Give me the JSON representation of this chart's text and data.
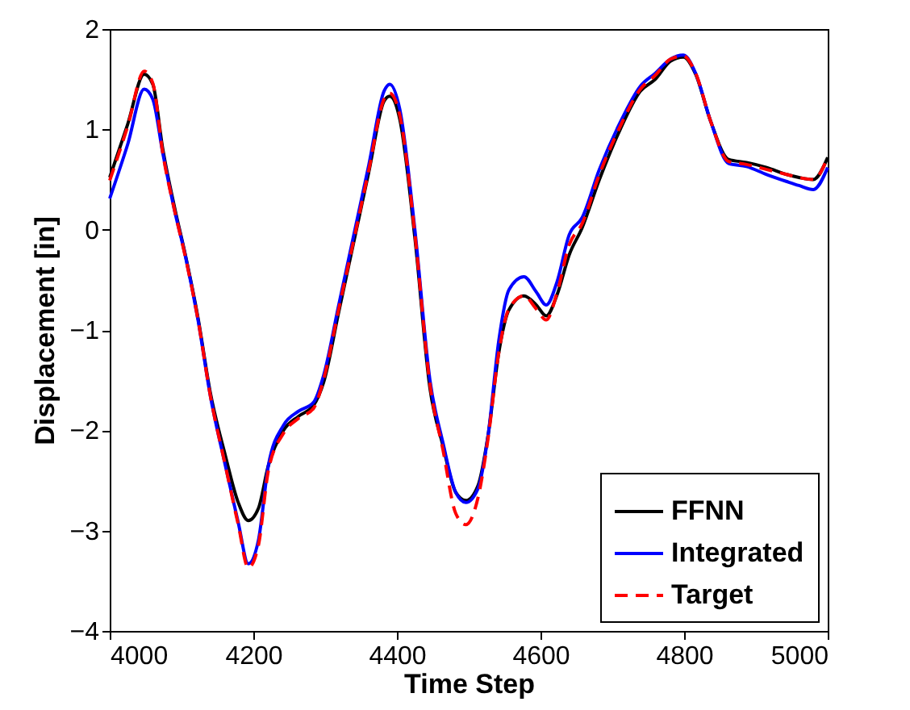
{
  "chart_data": {
    "type": "line",
    "xlabel": "Time Step",
    "ylabel": "Displacement [in]",
    "x": [
      4000,
      4025,
      4048,
      4060,
      4074,
      4091,
      4105,
      4123,
      4140,
      4161,
      4179,
      4193,
      4207,
      4221,
      4242,
      4263,
      4284,
      4298,
      4319,
      4340,
      4361,
      4382,
      4390,
      4404,
      4425,
      4446,
      4464,
      4482,
      4496,
      4513,
      4527,
      4542,
      4556,
      4577,
      4594,
      4608,
      4623,
      4640,
      4658,
      4682,
      4711,
      4739,
      4760,
      4781,
      4799,
      4816,
      4837,
      4862,
      4887,
      4915,
      4943,
      4960,
      4980,
      5000
    ],
    "series": [
      {
        "name": "FFNN",
        "color": "#000000",
        "line_style": "solid",
        "values": [
          0.52,
          1.05,
          1.55,
          1.45,
          0.8,
          0.2,
          -0.24,
          -0.88,
          -1.62,
          -2.25,
          -2.72,
          -2.9,
          -2.78,
          -2.35,
          -2.0,
          -1.86,
          -1.75,
          -1.52,
          -0.82,
          -0.12,
          0.58,
          1.28,
          1.33,
          1.1,
          -0.08,
          -1.58,
          -2.15,
          -2.62,
          -2.7,
          -2.55,
          -2.05,
          -1.22,
          -0.8,
          -0.66,
          -0.75,
          -0.86,
          -0.65,
          -0.25,
          0.02,
          0.5,
          1.0,
          1.38,
          1.5,
          1.68,
          1.72,
          1.55,
          1.08,
          0.7,
          0.67,
          0.62,
          0.55,
          0.52,
          0.5,
          0.72
        ]
      },
      {
        "name": "Integrated",
        "color": "#0000ff",
        "line_style": "solid",
        "values": [
          0.31,
          0.85,
          1.4,
          1.3,
          0.76,
          0.17,
          -0.25,
          -0.9,
          -1.65,
          -2.35,
          -2.92,
          -3.33,
          -3.1,
          -2.35,
          -1.95,
          -1.81,
          -1.72,
          -1.45,
          -0.75,
          -0.05,
          0.65,
          1.38,
          1.45,
          1.2,
          0.0,
          -1.5,
          -2.12,
          -2.62,
          -2.72,
          -2.58,
          -2.05,
          -1.1,
          -0.6,
          -0.47,
          -0.62,
          -0.75,
          -0.52,
          -0.05,
          0.12,
          0.6,
          1.07,
          1.43,
          1.56,
          1.7,
          1.74,
          1.56,
          1.08,
          0.66,
          0.63,
          0.55,
          0.48,
          0.44,
          0.4,
          0.62
        ]
      },
      {
        "name": "Target",
        "color": "#ff0000",
        "line_style": "dashed",
        "values": [
          0.49,
          1.03,
          1.58,
          1.46,
          0.76,
          0.17,
          -0.26,
          -0.9,
          -1.65,
          -2.35,
          -2.94,
          -3.37,
          -3.15,
          -2.4,
          -2.03,
          -1.88,
          -1.78,
          -1.49,
          -0.79,
          -0.1,
          0.6,
          1.3,
          1.36,
          1.14,
          -0.04,
          -1.54,
          -2.19,
          -2.83,
          -2.94,
          -2.67,
          -2.08,
          -1.22,
          -0.79,
          -0.66,
          -0.79,
          -0.9,
          -0.63,
          -0.15,
          0.06,
          0.55,
          1.03,
          1.4,
          1.54,
          1.7,
          1.73,
          1.56,
          1.08,
          0.68,
          0.65,
          0.6,
          0.55,
          0.52,
          0.5,
          0.72
        ]
      }
    ],
    "xlim": [
      4000,
      5000
    ],
    "xticks": [
      4000,
      4200,
      4400,
      4600,
      4800,
      5000
    ],
    "ylim": [
      -4,
      2
    ],
    "yticks": [
      -4,
      -3,
      -2,
      -1,
      0,
      1,
      2
    ],
    "grid": false,
    "legend": "bottom right"
  }
}
